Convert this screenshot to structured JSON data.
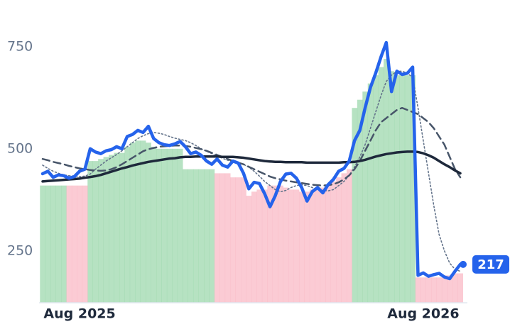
{
  "chart_data": {
    "type": "line",
    "categories": [
      null,
      null,
      null,
      null,
      null,
      null,
      null,
      "Aug 2025",
      null,
      null,
      null,
      null,
      null,
      null,
      null,
      null,
      null,
      null,
      null,
      null,
      null,
      null,
      null,
      null,
      null,
      null,
      null,
      null,
      null,
      null,
      null,
      null,
      null,
      null,
      null,
      null,
      null,
      null,
      null,
      null,
      null,
      null,
      null,
      null,
      null,
      null,
      null,
      null,
      null,
      null,
      null,
      null,
      null,
      null,
      null,
      null,
      null,
      null,
      null,
      null,
      null,
      null,
      null,
      null,
      null,
      null,
      null,
      null,
      null,
      null,
      null,
      null,
      "Aug 2026",
      null,
      null,
      null,
      null,
      null,
      null,
      null
    ],
    "ylim": [
      123,
      800
    ],
    "yticks": [
      250,
      500,
      750
    ],
    "grid": false,
    "series": [
      {
        "color": "#2563eb",
        "style": "solid",
        "width": 4.5,
        "values": [
          439,
          445,
          430,
          436,
          434,
          428,
          432,
          445,
          450,
          500,
          492,
          488,
          495,
          498,
          505,
          500,
          530,
          535,
          545,
          540,
          555,
          525,
          515,
          510,
          508,
          512,
          518,
          505,
          488,
          492,
          484,
          470,
          462,
          475,
          460,
          455,
          470,
          465,
          440,
          402,
          418,
          415,
          390,
          358,
          385,
          420,
          438,
          440,
          428,
          405,
          372,
          395,
          405,
          392,
          412,
          425,
          445,
          452,
          470,
          520,
          545,
          600,
          650,
          685,
          725,
          760,
          640,
          690,
          682,
          685,
          700,
          190,
          196,
          188,
          192,
          195,
          186,
          182,
          200,
          217
        ]
      },
      {
        "color": "#1e293b",
        "style": "solid",
        "width": 3.5,
        "values": [
          420,
          421,
          422,
          423,
          424,
          425,
          426,
          427,
          429,
          431,
          433,
          436,
          440,
          444,
          448,
          452,
          455,
          459,
          462,
          465,
          468,
          470,
          472,
          474,
          476,
          477,
          479,
          480,
          480,
          481,
          481,
          481,
          481,
          481,
          480,
          480,
          480,
          479,
          478,
          476,
          474,
          472,
          470,
          469,
          468,
          468,
          467,
          467,
          467,
          467,
          466,
          466,
          466,
          466,
          466,
          466,
          466,
          467,
          467,
          468,
          470,
          473,
          477,
          481,
          484,
          487,
          489,
          491,
          492,
          493,
          493,
          492,
          489,
          484,
          478,
          470,
          462,
          455,
          447,
          440
        ]
      },
      {
        "color": "#475569",
        "style": "dashed",
        "width": 2.5,
        "values": [
          475,
          472,
          468,
          465,
          462,
          458,
          455,
          452,
          450,
          448,
          447,
          446,
          447,
          450,
          455,
          462,
          470,
          478,
          486,
          494,
          499,
          502,
          505,
          506,
          507,
          508,
          508,
          507,
          505,
          502,
          499,
          495,
          490,
          485,
          480,
          475,
          470,
          466,
          462,
          456,
          450,
          444,
          438,
          432,
          428,
          425,
          422,
          420,
          418,
          416,
          414,
          412,
          411,
          410,
          411,
          413,
          418,
          425,
          435,
          450,
          470,
          495,
          520,
          545,
          565,
          575,
          585,
          595,
          600,
          595,
          590,
          585,
          575,
          565,
          550,
          530,
          510,
          480,
          450,
          430
        ]
      },
      {
        "color": "#64748b",
        "style": "dotted",
        "width": 1.6,
        "values": [
          460,
          452,
          445,
          440,
          436,
          434,
          433,
          432,
          433,
          438,
          450,
          460,
          470,
          478,
          486,
          495,
          505,
          515,
          525,
          532,
          537,
          540,
          538,
          535,
          530,
          526,
          523,
          520,
          515,
          508,
          500,
          494,
          488,
          482,
          477,
          472,
          468,
          465,
          462,
          455,
          445,
          433,
          420,
          410,
          400,
          395,
          398,
          405,
          410,
          412,
          410,
          405,
          400,
          398,
          397,
          400,
          410,
          420,
          435,
          455,
          480,
          510,
          550,
          590,
          630,
          665,
          680,
          690,
          690,
          685,
          675,
          600,
          520,
          440,
          360,
          290,
          250,
          220,
          205,
          200
        ]
      }
    ],
    "bars": [
      {
        "color": "#86cf9a",
        "values": [
          410,
          410,
          410,
          410,
          410,
          null,
          null,
          null,
          null,
          470,
          470,
          475,
          480,
          485,
          490,
          490,
          505,
          515,
          520,
          520,
          515,
          505,
          500,
          500,
          500,
          500,
          500,
          450,
          450,
          450,
          450,
          450,
          450,
          null,
          null,
          null,
          null,
          null,
          null,
          null,
          null,
          null,
          null,
          null,
          null,
          null,
          null,
          null,
          null,
          null,
          null,
          null,
          null,
          null,
          null,
          null,
          null,
          null,
          null,
          600,
          620,
          640,
          660,
          680,
          700,
          720,
          690,
          680,
          680,
          680,
          680,
          null,
          null,
          null,
          null,
          null,
          null,
          null,
          null,
          null
        ]
      },
      {
        "color": "#f9a8b8",
        "values": [
          null,
          null,
          null,
          null,
          null,
          410,
          410,
          410,
          410,
          null,
          null,
          null,
          null,
          null,
          null,
          null,
          null,
          null,
          null,
          null,
          null,
          null,
          null,
          null,
          null,
          null,
          null,
          null,
          null,
          null,
          null,
          null,
          null,
          440,
          440,
          440,
          430,
          430,
          430,
          385,
          395,
          400,
          400,
          410,
          410,
          410,
          405,
          400,
          400,
          395,
          395,
          400,
          400,
          405,
          410,
          420,
          430,
          440,
          450,
          null,
          null,
          null,
          null,
          null,
          null,
          null,
          null,
          null,
          null,
          null,
          null,
          185,
          185,
          185,
          185,
          185,
          190,
          190,
          195,
          195
        ]
      }
    ]
  }
}
